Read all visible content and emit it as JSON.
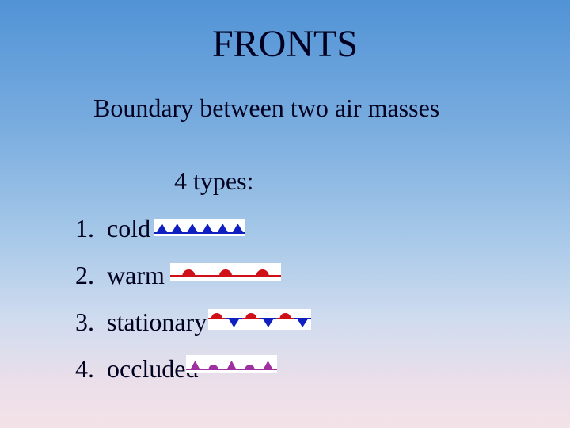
{
  "title": "FRONTS",
  "subtitle": "Boundary between two air masses",
  "types_label": "4 types:",
  "items": [
    {
      "num": "1.",
      "label": "cold"
    },
    {
      "num": "2.",
      "label": "warm"
    },
    {
      "num": "3.",
      "label": "stationary"
    },
    {
      "num": "4.",
      "label": "occluded"
    }
  ],
  "symbols": {
    "cold": {
      "type": "cold-front",
      "background": "#ffffff",
      "line_color": "#1020c0",
      "symbol_color": "#1020c0",
      "count": 6
    },
    "warm": {
      "type": "warm-front",
      "background": "#ffffff",
      "line_color": "#d01018",
      "symbol_color": "#d01018",
      "count": 3
    },
    "stationary": {
      "type": "stationary-front",
      "background": "#ffffff",
      "red": "#d01018",
      "blue": "#1020c0",
      "pairs": 3
    },
    "occluded": {
      "type": "occluded-front",
      "background": "#ffffff",
      "line_color": "#a030a0",
      "symbol_color": "#a030a0",
      "count": 5
    }
  },
  "style": {
    "title_fontsize": 48,
    "body_fontsize": 32,
    "background_gradient": [
      "#5193d6",
      "#7aaddf",
      "#a6c8e8",
      "#d0dcef",
      "#ecdfe9",
      "#f3e3e8"
    ],
    "text_color": "#000020"
  }
}
